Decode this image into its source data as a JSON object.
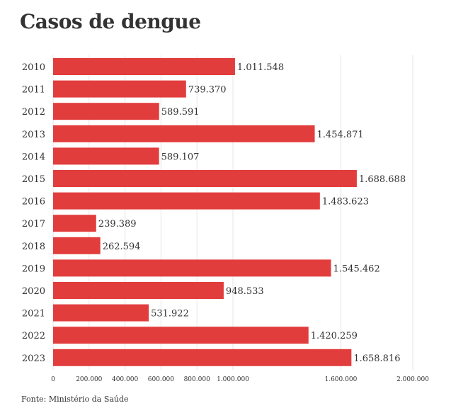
{
  "title": "Casos de dengue",
  "source": "Fonte: Ministério da Saúde",
  "colors": {
    "bar": "#e23d3d",
    "grid": "#e6e6e6",
    "text": "#333333"
  },
  "chart_data": {
    "type": "bar",
    "orientation": "horizontal",
    "title": "Casos de dengue",
    "categories": [
      "2010",
      "2011",
      "2012",
      "2013",
      "2014",
      "2015",
      "2016",
      "2017",
      "2018",
      "2019",
      "2020",
      "2021",
      "2022",
      "2023"
    ],
    "values": [
      1011548,
      739370,
      589591,
      1454871,
      589107,
      1688688,
      1483623,
      239389,
      262594,
      1545462,
      948533,
      531922,
      1420259,
      1658816
    ],
    "value_labels": [
      "1.011.548",
      "739.370",
      "589.591",
      "1.454.871",
      "589.107",
      "1.688.688",
      "1.483.623",
      "239.389",
      "262.594",
      "1.545.462",
      "948.533",
      "531.922",
      "1.420.259",
      "1.658.816"
    ],
    "x_ticks": [
      0,
      200000,
      400000,
      600000,
      800000,
      1000000,
      1600000,
      2000000
    ],
    "x_tick_labels": [
      "0",
      "200.000",
      "400.000",
      "600.000",
      "800.000",
      "1.000.000",
      "1.600.000",
      "2.000.000"
    ],
    "xlim": [
      0,
      2000000
    ],
    "grid": true,
    "xlabel": "",
    "ylabel": ""
  }
}
